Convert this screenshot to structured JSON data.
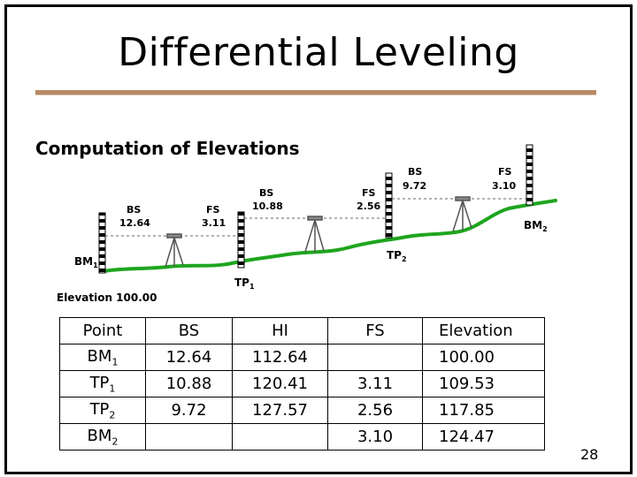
{
  "slide": {
    "title": "Differential Leveling",
    "subtitle": "Computation of Elevations",
    "page_number": "28"
  },
  "diagram": {
    "elevation_label": "Elevation 100.00",
    "bs_label": "BS",
    "fs_label": "FS",
    "points": [
      {
        "name": "BM",
        "sub": "1"
      },
      {
        "name": "TP",
        "sub": "1"
      },
      {
        "name": "TP",
        "sub": "2"
      },
      {
        "name": "BM",
        "sub": "2"
      }
    ],
    "setups": [
      {
        "bs": "12.64",
        "fs": "3.11"
      },
      {
        "bs": "10.88",
        "fs": "2.56"
      },
      {
        "bs": "9.72",
        "fs": "3.10"
      }
    ],
    "colors": {
      "ground": "#1fa51f",
      "rod": "#000000",
      "sightline": "#555555"
    }
  },
  "table": {
    "headers": [
      "Point",
      "BS",
      "HI",
      "FS",
      "Elevation"
    ],
    "rows": [
      {
        "point": "BM",
        "sub": "1",
        "bs": "12.64",
        "hi": "112.64",
        "fs": "",
        "elevation": "100.00"
      },
      {
        "point": "TP",
        "sub": "1",
        "bs": "10.88",
        "hi": "120.41",
        "fs": "3.11",
        "elevation": "109.53"
      },
      {
        "point": "TP",
        "sub": "2",
        "bs": "9.72",
        "hi": "127.57",
        "fs": "2.56",
        "elevation": "117.85"
      },
      {
        "point": "BM",
        "sub": "2",
        "bs": "",
        "hi": "",
        "fs": "3.10",
        "elevation": "124.47"
      }
    ]
  }
}
